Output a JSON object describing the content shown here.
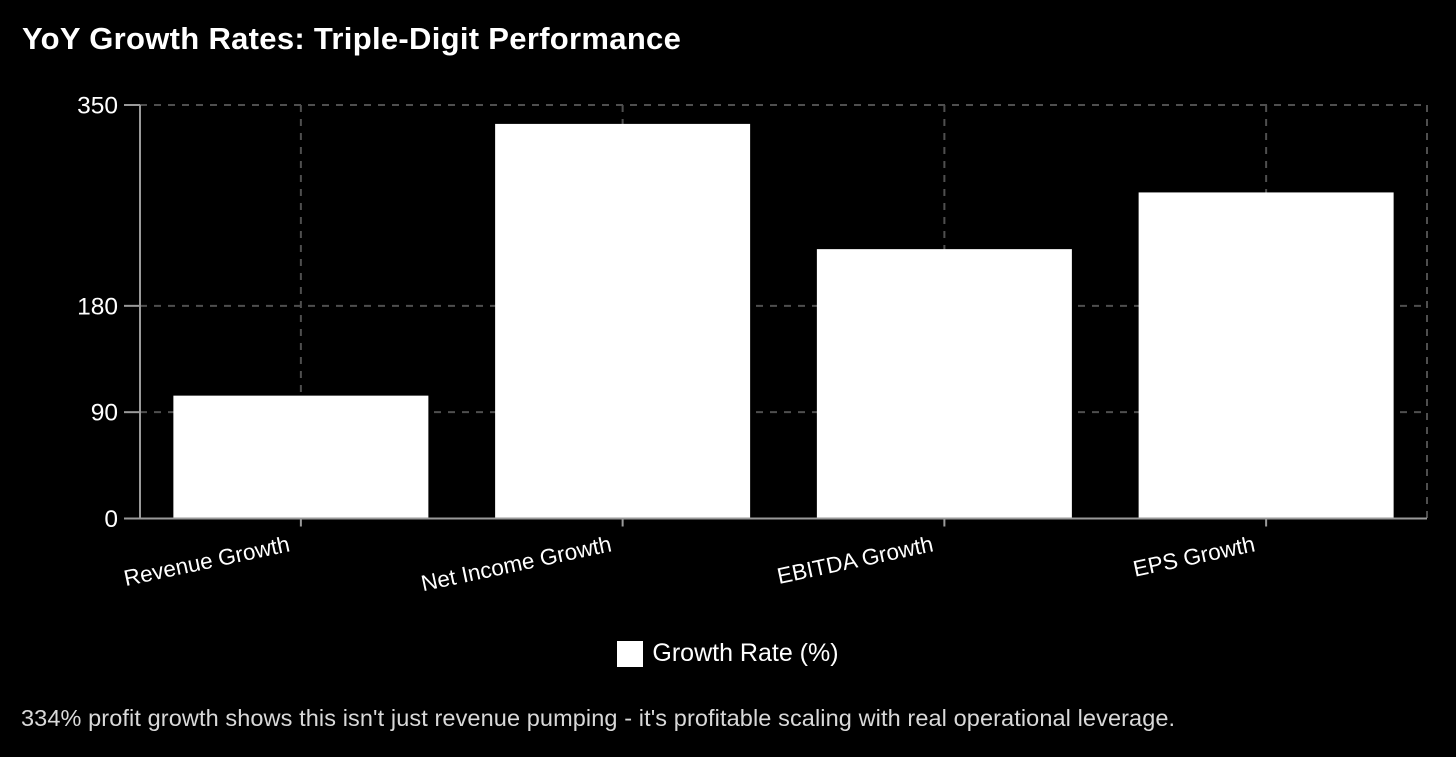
{
  "title": "YoY Growth Rates: Triple-Digit Performance",
  "legend": {
    "label": "Growth Rate (%)"
  },
  "caption": "334% profit growth shows this isn't just revenue pumping - it's profitable scaling with real operational leverage.",
  "colors": {
    "background": "#000000",
    "bar": "#ffffff",
    "axis": "#9a9a9a",
    "grid": "#4f4f4f",
    "text": "#ffffff",
    "caption_text": "#d9d9d9"
  },
  "chart_data": {
    "type": "bar",
    "title": "YoY Growth Rates: Triple-Digit Performance",
    "categories": [
      "Revenue Growth",
      "Net Income Growth",
      "EBITDA Growth",
      "EPS Growth"
    ],
    "series": [
      {
        "name": "Growth Rate (%)",
        "values": [
          104,
          334,
          228,
          276
        ]
      }
    ],
    "xlabel": "",
    "ylabel": "",
    "ylim": [
      0,
      350
    ],
    "yticks": [
      0,
      90,
      180,
      350
    ],
    "grid": "dashed horizontal at yticks + dashed vertical at category centers and right edge",
    "legend_position": "bottom-center",
    "bar_color": "#ffffff",
    "background": "#000000"
  }
}
